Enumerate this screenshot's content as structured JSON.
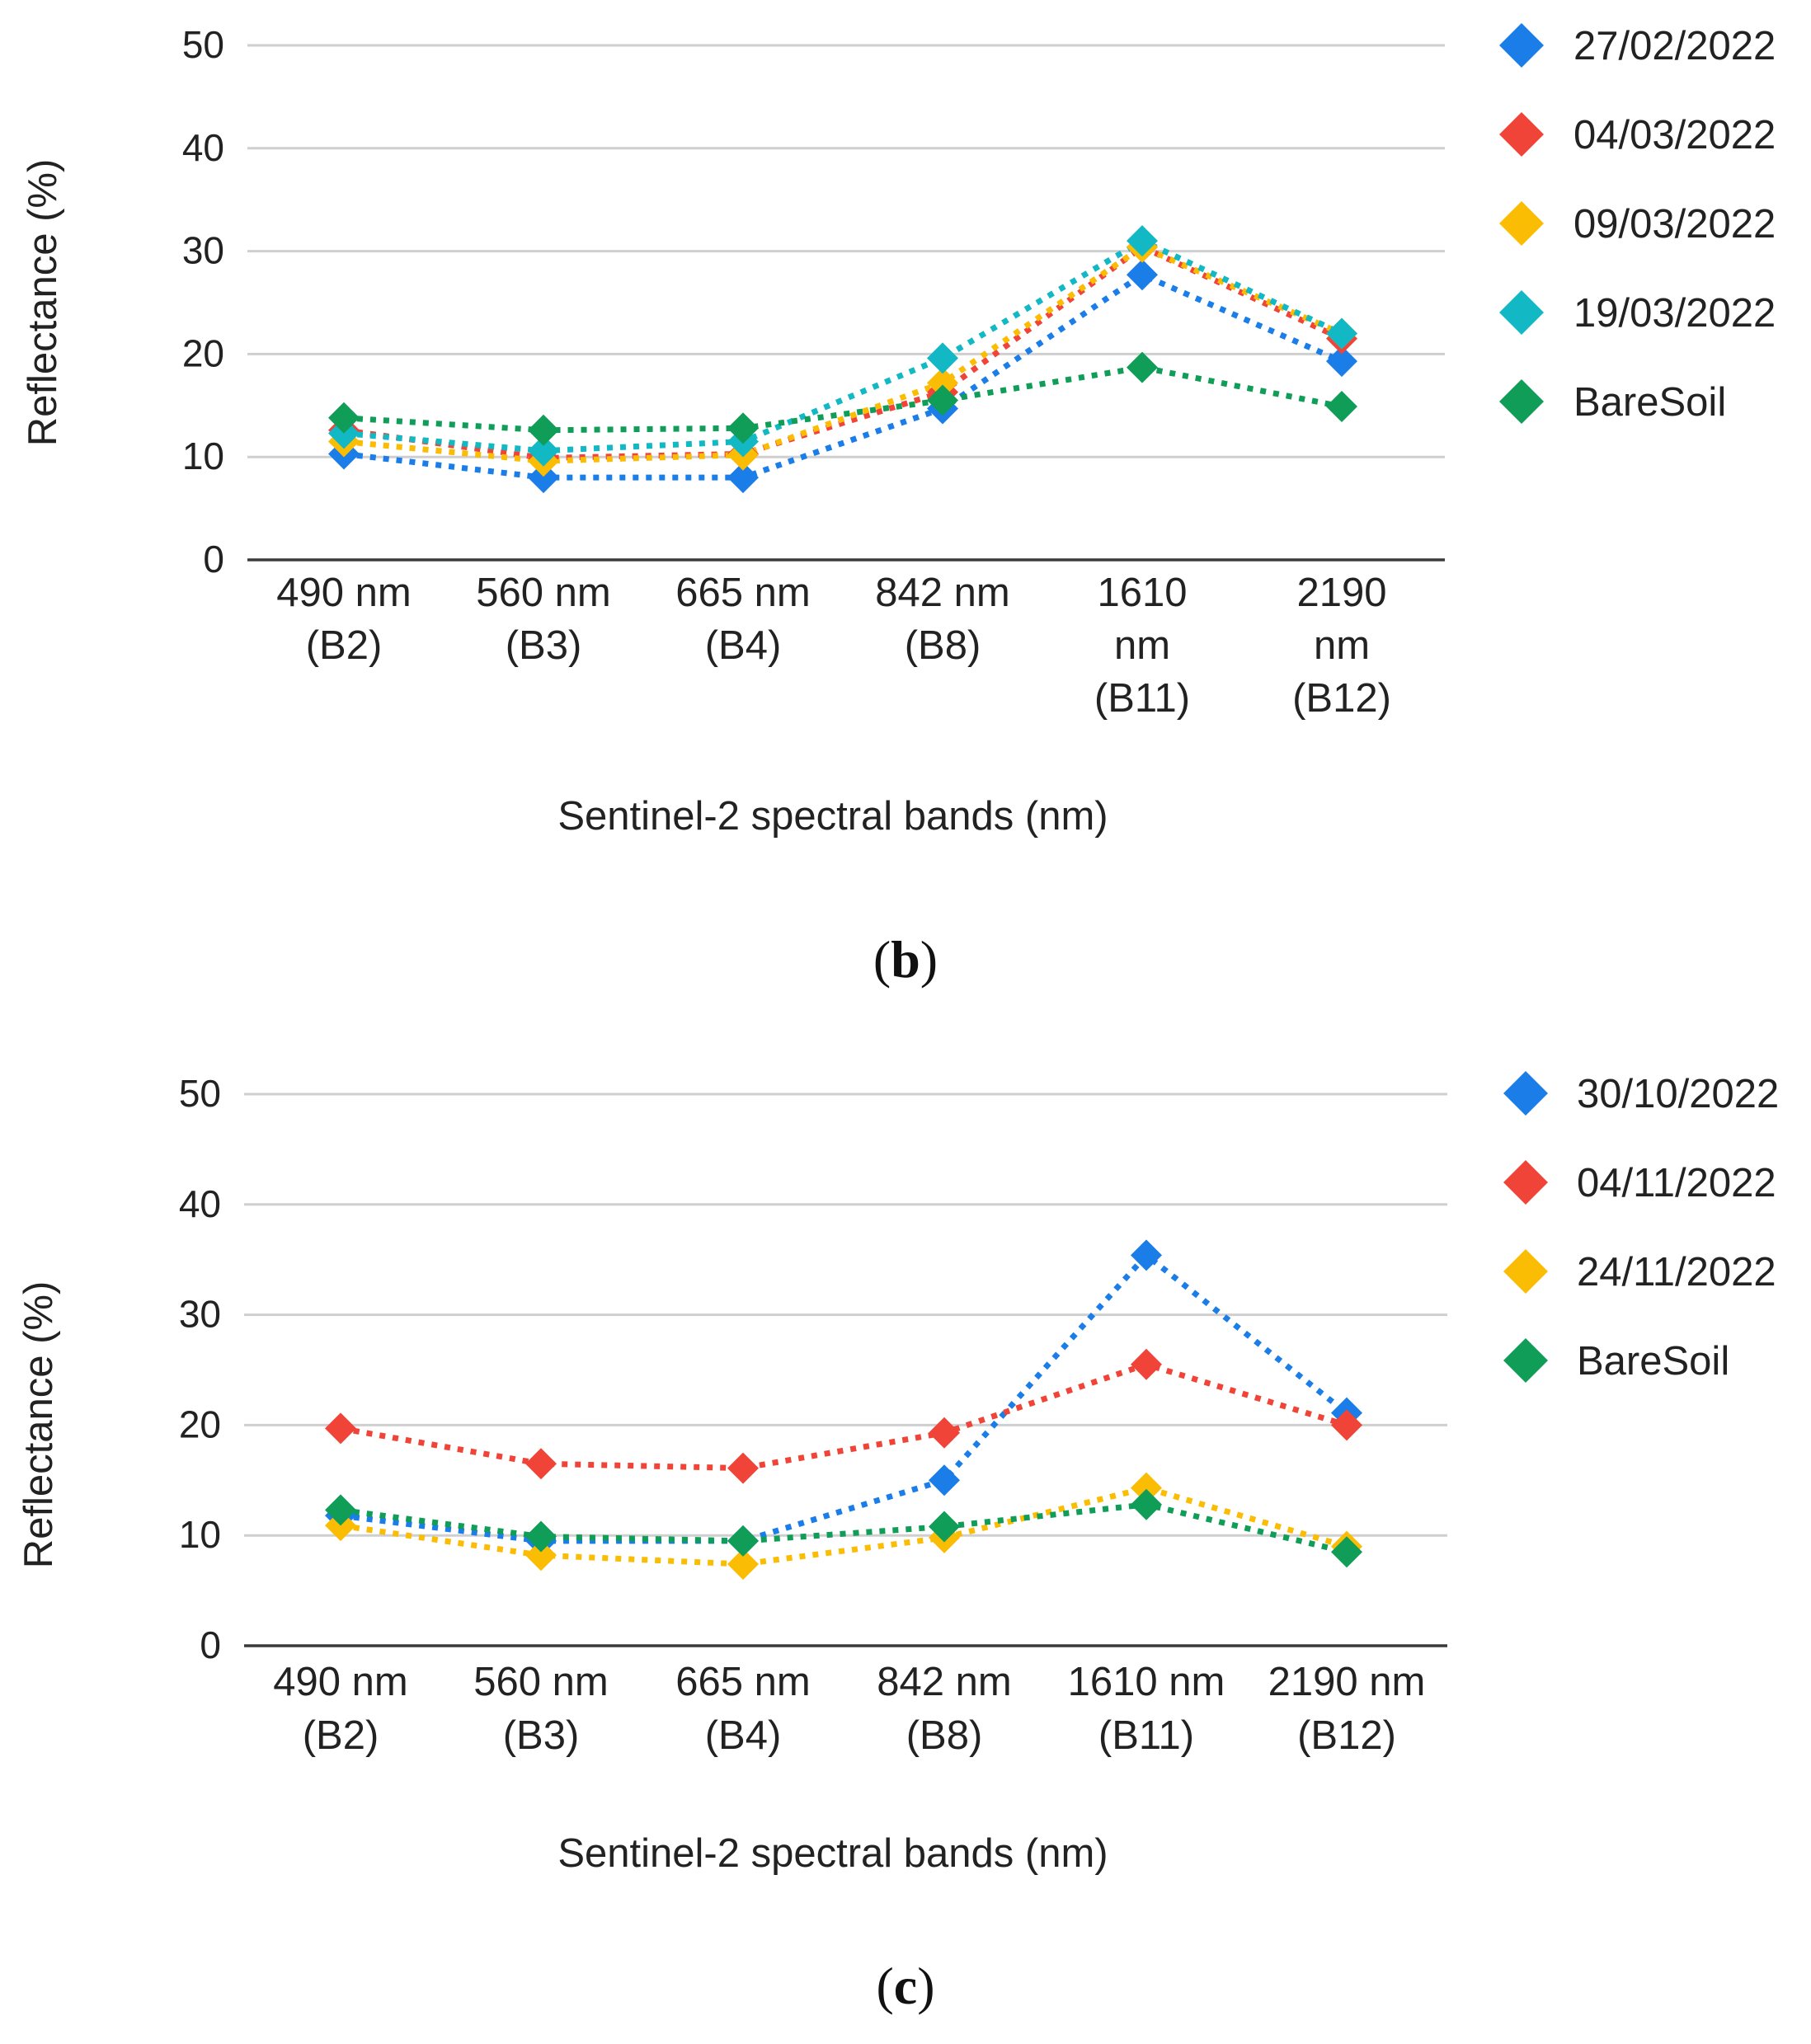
{
  "chart_data": [
    {
      "type": "line",
      "panel_label_open": "(",
      "panel_label_letter": "b",
      "panel_label_close": ")",
      "xlabel": "Sentinel-2 spectral bands (nm)",
      "ylabel": "Reflectance (%)",
      "ylim": [
        0,
        50
      ],
      "yticks": [
        "0",
        "10",
        "20",
        "30",
        "40",
        "50"
      ],
      "grid": true,
      "legend_position": "right",
      "categories": [
        [
          "490 nm",
          "(B2)"
        ],
        [
          "560 nm",
          "(B3)"
        ],
        [
          "665 nm",
          "(B4)"
        ],
        [
          "842 nm",
          "(B8)"
        ],
        [
          "1610",
          "nm",
          "(B11)"
        ],
        [
          "2190",
          "nm",
          "(B12)"
        ]
      ],
      "series": [
        {
          "name": "27/02/2022",
          "color": "#1a7de8",
          "values": [
            10.3,
            8.0,
            8.0,
            14.7,
            27.7,
            19.3
          ]
        },
        {
          "name": "04/03/2022",
          "color": "#f04438",
          "values": [
            12.6,
            9.9,
            10.3,
            16.3,
            30.4,
            21.5
          ]
        },
        {
          "name": "09/03/2022",
          "color": "#fbbc04",
          "values": [
            11.5,
            9.6,
            10.2,
            17.2,
            30.4,
            22.0
          ]
        },
        {
          "name": "19/03/2022",
          "color": "#12b8c4",
          "values": [
            12.3,
            10.6,
            11.5,
            19.6,
            31.0,
            22.0
          ]
        },
        {
          "name": "BareSoil",
          "color": "#0f9d58",
          "values": [
            13.8,
            12.6,
            12.8,
            15.5,
            18.7,
            14.9
          ]
        }
      ]
    },
    {
      "type": "line",
      "panel_label_open": "(",
      "panel_label_letter": "c",
      "panel_label_close": ")",
      "xlabel": "Sentinel-2 spectral bands (nm)",
      "ylabel": "Reflectance (%)",
      "ylim": [
        0,
        50
      ],
      "yticks": [
        "0",
        "10",
        "20",
        "30",
        "40",
        "50"
      ],
      "grid": true,
      "legend_position": "right",
      "categories": [
        [
          "490 nm",
          "(B2)"
        ],
        [
          "560 nm",
          "(B3)"
        ],
        [
          "665 nm",
          "(B4)"
        ],
        [
          "842 nm",
          "(B8)"
        ],
        [
          "1610 nm",
          "(B11)"
        ],
        [
          "2190 nm",
          "(B12)"
        ]
      ],
      "series": [
        {
          "name": "30/10/2022",
          "color": "#1a7de8",
          "values": [
            11.8,
            9.5,
            9.5,
            15.0,
            35.4,
            21.1
          ]
        },
        {
          "name": "04/11/2022",
          "color": "#f04438",
          "values": [
            19.7,
            16.5,
            16.1,
            19.3,
            25.5,
            20.0
          ]
        },
        {
          "name": "24/11/2022",
          "color": "#fbbc04",
          "values": [
            10.9,
            8.2,
            7.4,
            9.8,
            14.3,
            9.0
          ]
        },
        {
          "name": "BareSoil",
          "color": "#0f9d58",
          "values": [
            12.3,
            9.9,
            9.5,
            10.8,
            12.8,
            8.5
          ]
        }
      ]
    }
  ]
}
